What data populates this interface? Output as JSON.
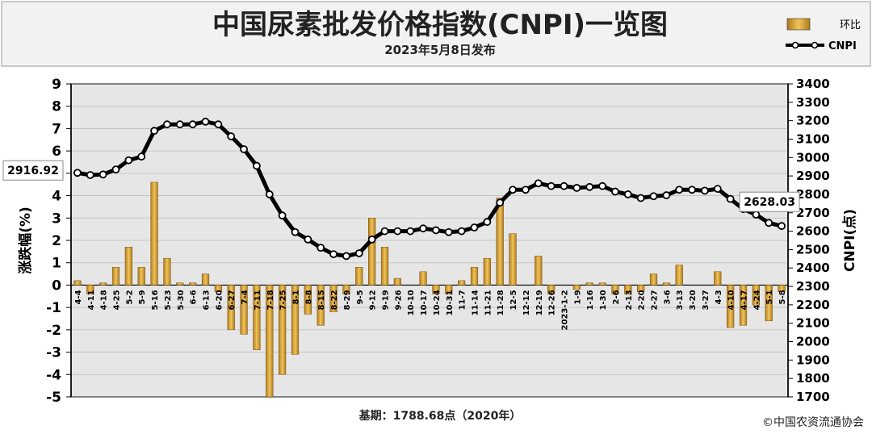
{
  "title": "中国尿素批发价格指数(CNPI)一览图",
  "subtitle": "2023年5月8日发布",
  "base_note": "基期：1788.68点（2020年）",
  "copyright": "©中国农资流通协会",
  "colors": {
    "bar": "#d9a441",
    "line": "#000000",
    "panel": "#f2f2f2"
  },
  "chart_data": {
    "type": "bar",
    "categories": [
      "4-4",
      "4-11",
      "4-18",
      "4-25",
      "5-2",
      "5-9",
      "5-16",
      "5-23",
      "5-30",
      "6-6",
      "6-13",
      "6-20",
      "6-27",
      "7-4",
      "7-11",
      "7-18",
      "7-25",
      "8-1",
      "8-8",
      "8-15",
      "8-22",
      "8-29",
      "9-5",
      "9-12",
      "9-19",
      "9-26",
      "10-10",
      "10-17",
      "10-24",
      "10-31",
      "11-7",
      "11-14",
      "11-21",
      "11-28",
      "12-5",
      "12-12",
      "12-19",
      "12-26",
      "2023-1-2",
      "1-9",
      "1-16",
      "1-30",
      "2-6",
      "2-13",
      "2-20",
      "2-27",
      "3-6",
      "3-13",
      "3-20",
      "3-27",
      "4-3",
      "4-10",
      "4-17",
      "4-24",
      "5-1",
      "5-8"
    ],
    "series": [
      {
        "name": "环比",
        "type": "bar",
        "axis": "left",
        "values": [
          0.2,
          -0.4,
          0.1,
          0.8,
          1.7,
          0.8,
          4.6,
          1.2,
          0.1,
          0.1,
          0.5,
          -0.3,
          -2.0,
          -2.2,
          -2.9,
          -5.0,
          -4.0,
          -3.1,
          -1.3,
          -1.8,
          -1.2,
          -0.4,
          0.8,
          3.0,
          1.7,
          0.3,
          0,
          0.6,
          -0.4,
          -0.4,
          0.2,
          0.8,
          1.2,
          3.9,
          2.3,
          0,
          1.3,
          -0.4,
          0,
          -0.2,
          0.1,
          0.1,
          -0.4,
          -0.4,
          -0.3,
          0.5,
          0.1,
          0.9,
          0,
          0,
          0.6,
          -1.9,
          -1.8,
          -0.9,
          -1.6,
          -0.3
        ]
      },
      {
        "name": "CNPI",
        "type": "line",
        "axis": "right",
        "values": [
          2917,
          2905,
          2908,
          2935,
          2985,
          3005,
          3145,
          3180,
          3180,
          3180,
          3195,
          3180,
          3115,
          3045,
          2955,
          2800,
          2685,
          2595,
          2555,
          2510,
          2475,
          2465,
          2480,
          2555,
          2600,
          2600,
          2600,
          2615,
          2605,
          2595,
          2600,
          2620,
          2650,
          2755,
          2825,
          2825,
          2860,
          2845,
          2845,
          2835,
          2840,
          2845,
          2815,
          2800,
          2780,
          2790,
          2795,
          2825,
          2825,
          2820,
          2830,
          2775,
          2720,
          2690,
          2645,
          2628
        ]
      }
    ],
    "ylabel": "涨跌幅(%)",
    "y2label": "CNPI(点)",
    "ylim": [
      -5,
      9
    ],
    "y2lim": [
      1700,
      3400
    ],
    "yticks": [
      -5,
      -4,
      -3,
      -2,
      -1,
      0,
      1,
      2,
      3,
      4,
      5,
      6,
      7,
      8,
      9
    ],
    "y2ticks": [
      1700,
      1800,
      1900,
      2000,
      2100,
      2200,
      2300,
      2400,
      2500,
      2600,
      2700,
      2800,
      2900,
      3000,
      3100,
      3200,
      3300,
      3400
    ],
    "annotations": [
      {
        "text": "2916.92",
        "index": 0
      },
      {
        "text": "2628.03",
        "index": 55
      }
    ],
    "legend": {
      "position": "top-right",
      "items": [
        "环比",
        "CNPI"
      ]
    },
    "grid": true
  }
}
